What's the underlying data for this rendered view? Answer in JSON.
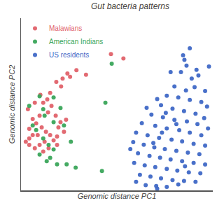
{
  "chart_data": {
    "type": "scatter",
    "title": "Gut bacteria patterns",
    "x_label": "Genomic distance PC1",
    "y_label": "Genomic distance PC2",
    "xlim": [
      0,
      100
    ],
    "ylim": [
      0,
      100
    ],
    "xticks": [],
    "yticks": [],
    "tick_labels": false,
    "grid": false,
    "legend": "upper left",
    "marker": "circle",
    "series": [
      {
        "name": "Malawians",
        "color": "#e0626a",
        "x": [
          46.9,
          53.4,
          33.9,
          28.9,
          25.6,
          24.2,
          21.7,
          20.9,
          18.4,
          15.2,
          13.7,
          11.6,
          15.9,
          14.1,
          9.7,
          6.1,
          7.9,
          10.8,
          13.0,
          15.2,
          18.8,
          6.1,
          4.3,
          2.5,
          4.3,
          7.2,
          9.7,
          12.3,
          17.0,
          20.6,
          23.5,
          18.1,
          4.3,
          8.7,
          11.6,
          14.4,
          18.8,
          22.4,
          19.5,
          3.6,
          7.2,
          10.1
        ],
        "y": [
          79.2,
          76.6,
          67.2,
          69.8,
          66.0,
          67.9,
          64.9,
          60.4,
          63.0,
          56.6,
          52.8,
          50.9,
          49.1,
          45.3,
          43.4,
          41.5,
          38.9,
          36.6,
          34.0,
          32.1,
          31.3,
          32.1,
          30.2,
          28.3,
          26.4,
          24.5,
          26.4,
          28.3,
          29.1,
          39.6,
          41.1,
          43.4,
          35.8,
          32.1,
          22.6,
          24.5,
          26.4,
          34.0,
          36.6,
          47.2,
          50.9,
          55.5
        ]
      },
      {
        "name": "American Indians",
        "color": "#3aa55a",
        "x": [
          47.3,
          44.0,
          42.2,
          28.5,
          23.8,
          18.8,
          15.2,
          13.4,
          9.7,
          17.0,
          11.6,
          7.9,
          6.1,
          12.3,
          17.0,
          22.4,
          20.6,
          17.0,
          11.6,
          9.7,
          4.3,
          14.4,
          26.0
        ],
        "y": [
          73.6,
          50.9,
          11.3,
          13.2,
          15.1,
          15.1,
          18.9,
          17.0,
          20.8,
          23.8,
          30.2,
          35.1,
          37.7,
          43.4,
          39.6,
          37.7,
          47.9,
          54.0,
          47.2,
          54.7,
          49.1,
          26.4,
          28.3
        ]
      },
      {
        "name": "US residents",
        "color": "#3f68c6",
        "x": [
          84.5,
          85.2,
          86.3,
          83.4,
          78,
          89,
          92.5,
          90.5,
          96,
          86,
          80,
          76,
          82,
          88,
          94,
          97,
          73,
          79,
          85,
          91,
          95.5,
          68,
          74,
          80,
          86.5,
          92,
          97.5,
          63,
          70,
          76,
          82.5,
          88,
          94,
          60,
          66,
          72,
          78.5,
          84,
          90,
          96,
          58.5,
          64,
          69.5,
          75,
          81,
          87,
          93,
          61,
          67,
          72.5,
          78,
          84,
          90,
          96,
          59,
          64.5,
          70,
          76,
          81.5,
          87.5,
          93.5,
          62,
          67.5,
          73,
          79,
          85,
          91,
          65,
          70.5,
          76,
          82,
          60,
          71,
          75.5,
          71,
          65.5,
          91.5,
          88,
          98,
          81,
          69,
          57,
          85.5,
          73.5
        ],
        "y": [
          78.5,
          75.8,
          72.5,
          68.7,
          68.7,
          64.9,
          66.8,
          60,
          57.7,
          58,
          60.4,
          55,
          54,
          52.5,
          51.3,
          48.7,
          49.5,
          47.5,
          46,
          44.5,
          42,
          44,
          42.5,
          41,
          40,
          38.5,
          36,
          39,
          37.5,
          36,
          35,
          33.5,
          32,
          33.5,
          32,
          30.5,
          29.5,
          28.5,
          27,
          26,
          28,
          26.5,
          25,
          24,
          23,
          22,
          21,
          21.5,
          20,
          19,
          18,
          17,
          16,
          15,
          16,
          14.5,
          13.5,
          12.5,
          11.5,
          10.5,
          10,
          9,
          8,
          7,
          6,
          5.5,
          5,
          3,
          2.5,
          2,
          3.5,
          5,
          1,
          45,
          53,
          48,
          70,
          82.5,
          72,
          38.5,
          27.5,
          24,
          14,
          33.5
        ]
      }
    ]
  }
}
